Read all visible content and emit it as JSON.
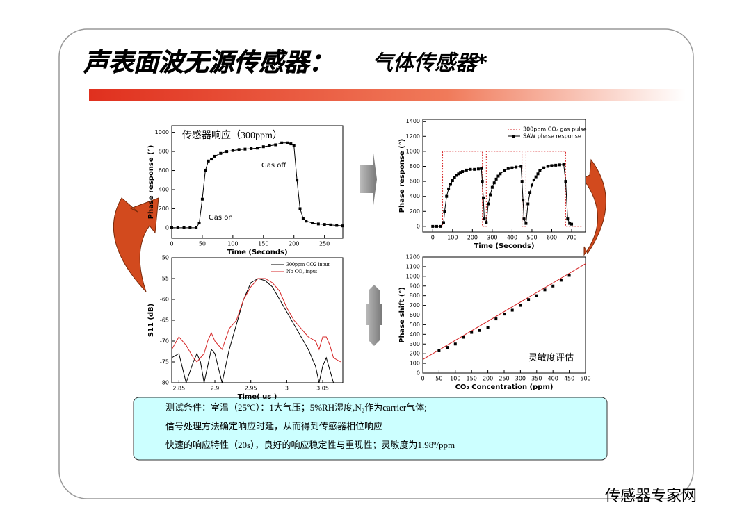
{
  "title": "声表面波无源传感器：",
  "title_highlight": "气体传感器*",
  "notes": [
    "测试条件：室温（25ºC）：1大气压；5%RH湿度,N₂作为carrier气体;",
    "信号处理方法确定响应时延，从而得到传感器相位响应",
    "快速的响应特性（20s），良好的响应稳定性与重现性；灵敏度为1.98º/ppm"
  ],
  "watermark": "传感器专家网",
  "chart_data": [
    {
      "type": "line",
      "xlabel": "Time (Seconds)",
      "ylabel": "Phase response (°)",
      "annotations": [
        "传感器响应（300ppm）",
        "Gas on",
        "Gas off"
      ],
      "xlim": [
        0,
        280
      ],
      "xticks": [
        0,
        50,
        100,
        150,
        200,
        250
      ],
      "ylim": [
        -110,
        1070
      ],
      "yticks": [
        0,
        200,
        400,
        600,
        800,
        1000
      ],
      "series": [
        {
          "color": "#000000",
          "marker": "square",
          "x": [
            0,
            10,
            20,
            30,
            40,
            45,
            50,
            55,
            60,
            65,
            70,
            80,
            90,
            100,
            110,
            120,
            130,
            140,
            150,
            160,
            170,
            180,
            190,
            195,
            200,
            205,
            210,
            215,
            220,
            230,
            240,
            250,
            260,
            270,
            280
          ],
          "values": [
            0,
            0,
            0,
            0,
            0,
            50,
            300,
            600,
            700,
            720,
            750,
            780,
            800,
            810,
            820,
            825,
            830,
            835,
            850,
            860,
            870,
            890,
            890,
            880,
            860,
            500,
            200,
            100,
            70,
            50,
            40,
            35,
            30,
            25,
            20
          ]
        }
      ]
    },
    {
      "type": "line",
      "xlabel": "Time (Seconds)",
      "ylabel": "Phase response (°)",
      "xlim": [
        -50,
        770
      ],
      "xticks": [
        0,
        100,
        200,
        300,
        400,
        500,
        600,
        700
      ],
      "ylim": [
        -75,
        1425
      ],
      "yticks": [
        0,
        200,
        400,
        600,
        800,
        1000,
        1200,
        1400
      ],
      "series": [
        {
          "name": "300ppm CO₂ gas pulse",
          "color": "#d62728",
          "dash": true,
          "x": [
            0,
            50,
            50,
            250,
            250,
            270,
            270,
            450,
            450,
            470,
            470,
            670,
            670,
            750
          ],
          "values": [
            0,
            0,
            1000,
            1000,
            0,
            0,
            1000,
            1000,
            0,
            0,
            1000,
            1000,
            0,
            0
          ]
        },
        {
          "name": "SAW phase response",
          "color": "#000000",
          "marker": "square",
          "x": [
            0,
            20,
            40,
            55,
            60,
            70,
            80,
            90,
            100,
            110,
            120,
            130,
            140,
            150,
            170,
            190,
            210,
            230,
            245,
            250,
            255,
            260,
            270,
            280,
            290,
            300,
            310,
            320,
            330,
            340,
            360,
            380,
            400,
            420,
            445,
            450,
            455,
            460,
            470,
            480,
            490,
            500,
            510,
            520,
            530,
            540,
            560,
            580,
            600,
            620,
            640,
            660,
            670,
            680,
            690,
            700
          ],
          "values": [
            0,
            0,
            0,
            50,
            200,
            400,
            500,
            560,
            610,
            650,
            680,
            700,
            720,
            730,
            750,
            760,
            760,
            765,
            770,
            600,
            380,
            100,
            50,
            300,
            420,
            520,
            580,
            630,
            670,
            700,
            740,
            770,
            780,
            790,
            800,
            600,
            350,
            100,
            40,
            300,
            450,
            550,
            620,
            660,
            700,
            740,
            780,
            800,
            810,
            815,
            820,
            825,
            600,
            100,
            40,
            30
          ]
        }
      ]
    },
    {
      "type": "line",
      "xlabel": "Time( us )",
      "ylabel": "S11 (dB)",
      "xlim": [
        2.84,
        3.078
      ],
      "xticks": [
        2.85,
        2.9,
        2.95,
        3,
        3.05
      ],
      "ylim": [
        -80,
        -50
      ],
      "yticks": [
        -80,
        -75,
        -70,
        -65,
        -60,
        -55,
        -50
      ],
      "x": [
        2.84,
        2.85,
        2.86,
        2.87,
        2.875,
        2.88,
        2.885,
        2.89,
        2.895,
        2.9,
        2.91,
        2.92,
        2.93,
        2.94,
        2.95,
        2.96,
        2.97,
        2.98,
        2.99,
        3.0,
        3.01,
        3.02,
        3.03,
        3.04,
        3.045,
        3.05,
        3.055,
        3.06,
        3.065,
        3.075
      ],
      "series": [
        {
          "name": "300ppm CO2 input",
          "color": "#000000",
          "values": [
            -74,
            -73,
            -80,
            -75,
            -73,
            -75,
            -80,
            -76,
            -72,
            -73,
            -80,
            -72,
            -66,
            -60,
            -56,
            -55,
            -55.5,
            -57,
            -60,
            -63,
            -66,
            -69,
            -72,
            -76,
            -80,
            -76,
            -74,
            -77,
            -80,
            -80
          ]
        },
        {
          "name": "No CO₂ input",
          "color": "#d62728",
          "values": [
            -72,
            -69,
            -71,
            -74,
            -75,
            -74,
            -73,
            -70,
            -68,
            -70,
            -72,
            -67,
            -65,
            -60,
            -57,
            -55,
            -55,
            -56,
            -58,
            -62,
            -65,
            -67,
            -69,
            -70,
            -72,
            -69,
            -69,
            -71,
            -74,
            -75
          ]
        }
      ]
    },
    {
      "type": "scatter",
      "xlabel": "CO₂ Concentration (ppm)",
      "ylabel": "Phase shift (°)",
      "annotations": [
        "灵敏度评估"
      ],
      "xlim": [
        0,
        500
      ],
      "xticks": [
        0,
        50,
        100,
        150,
        200,
        250,
        300,
        350,
        400,
        450,
        500
      ],
      "ylim": [
        0,
        1200
      ],
      "yticks": [
        0,
        100,
        200,
        300,
        400,
        500,
        600,
        700,
        800,
        900,
        1000,
        1100,
        1200
      ],
      "series": [
        {
          "color": "#000000",
          "marker": "square",
          "x": [
            50,
            75,
            100,
            125,
            150,
            175,
            200,
            225,
            250,
            275,
            300,
            325,
            350,
            375,
            400,
            425,
            450
          ],
          "values": [
            230,
            265,
            300,
            370,
            420,
            440,
            470,
            560,
            610,
            650,
            700,
            760,
            800,
            860,
            900,
            960,
            1010
          ]
        }
      ],
      "fit": {
        "color": "#d62728",
        "x": [
          0,
          500
        ],
        "values": [
          140,
          1130
        ]
      }
    }
  ]
}
